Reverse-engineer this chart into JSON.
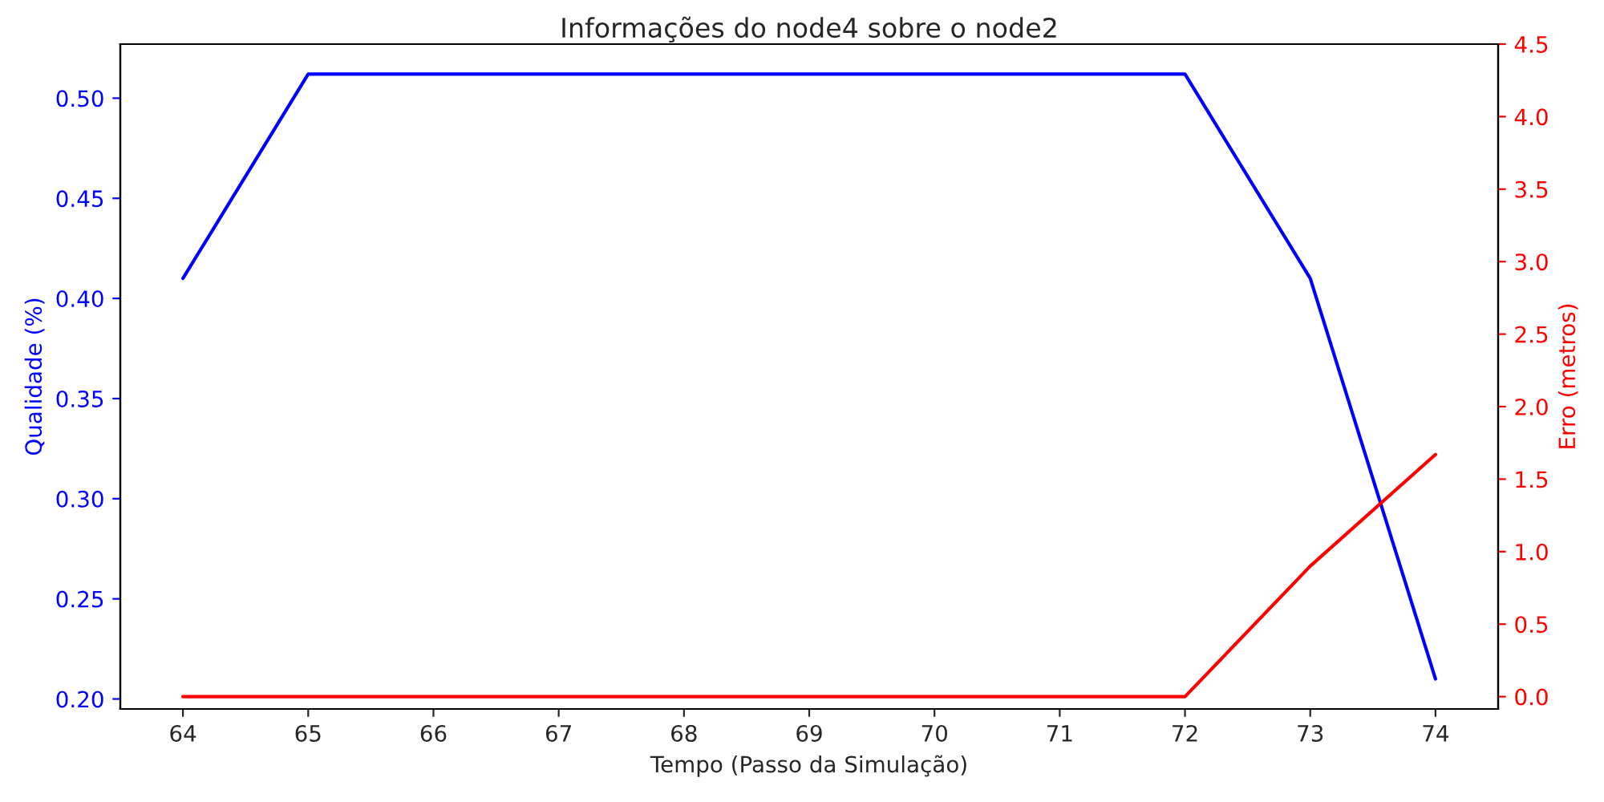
{
  "chart_data": {
    "type": "line",
    "title": "Informações do node4 sobre o node2",
    "xlabel": "Tempo (Passo da Simulação)",
    "ylabel": "Qualidade (%)",
    "y2label": "Erro (metros)",
    "x": [
      64,
      65,
      66,
      67,
      68,
      69,
      70,
      71,
      72,
      73,
      74
    ],
    "series": [
      {
        "color": "#0000ff",
        "values": [
          0.41,
          0.512,
          0.512,
          0.512,
          0.512,
          0.512,
          0.512,
          0.512,
          0.512,
          0.41,
          0.21
        ]
      },
      {
        "color": "#ff0000",
        "axis": "y2",
        "values": [
          0,
          0,
          0,
          0,
          0,
          0,
          0,
          0,
          0,
          0.9,
          1.67
        ]
      }
    ],
    "xlim": [
      63.5,
      74.5
    ],
    "xticks": [
      64,
      65,
      66,
      67,
      68,
      69,
      70,
      71,
      72,
      73,
      74
    ],
    "ylim": [
      0.195,
      0.527
    ],
    "yticks": [
      {
        "value": 0.2,
        "label": "0.20"
      },
      {
        "value": 0.25,
        "label": "0.25"
      },
      {
        "value": 0.3,
        "label": "0.30"
      },
      {
        "value": 0.35,
        "label": "0.35"
      },
      {
        "value": 0.4,
        "label": "0.40"
      },
      {
        "value": 0.45,
        "label": "0.45"
      },
      {
        "value": 0.5,
        "label": "0.50"
      }
    ],
    "y2lim": [
      -0.085,
      4.5
    ],
    "y2ticks": [
      {
        "value": 0,
        "label": "0.0"
      },
      {
        "value": 0.5,
        "label": "0.5"
      },
      {
        "value": 1,
        "label": "1.0"
      },
      {
        "value": 1.5,
        "label": "1.5"
      },
      {
        "value": 2,
        "label": "2.0"
      },
      {
        "value": 2.5,
        "label": "2.5"
      },
      {
        "value": 3,
        "label": "3.0"
      },
      {
        "value": 3.5,
        "label": "3.5"
      },
      {
        "value": 4,
        "label": "4.0"
      },
      {
        "value": 4.5,
        "label": "4.5"
      }
    ],
    "grid": false,
    "legend": false
  }
}
